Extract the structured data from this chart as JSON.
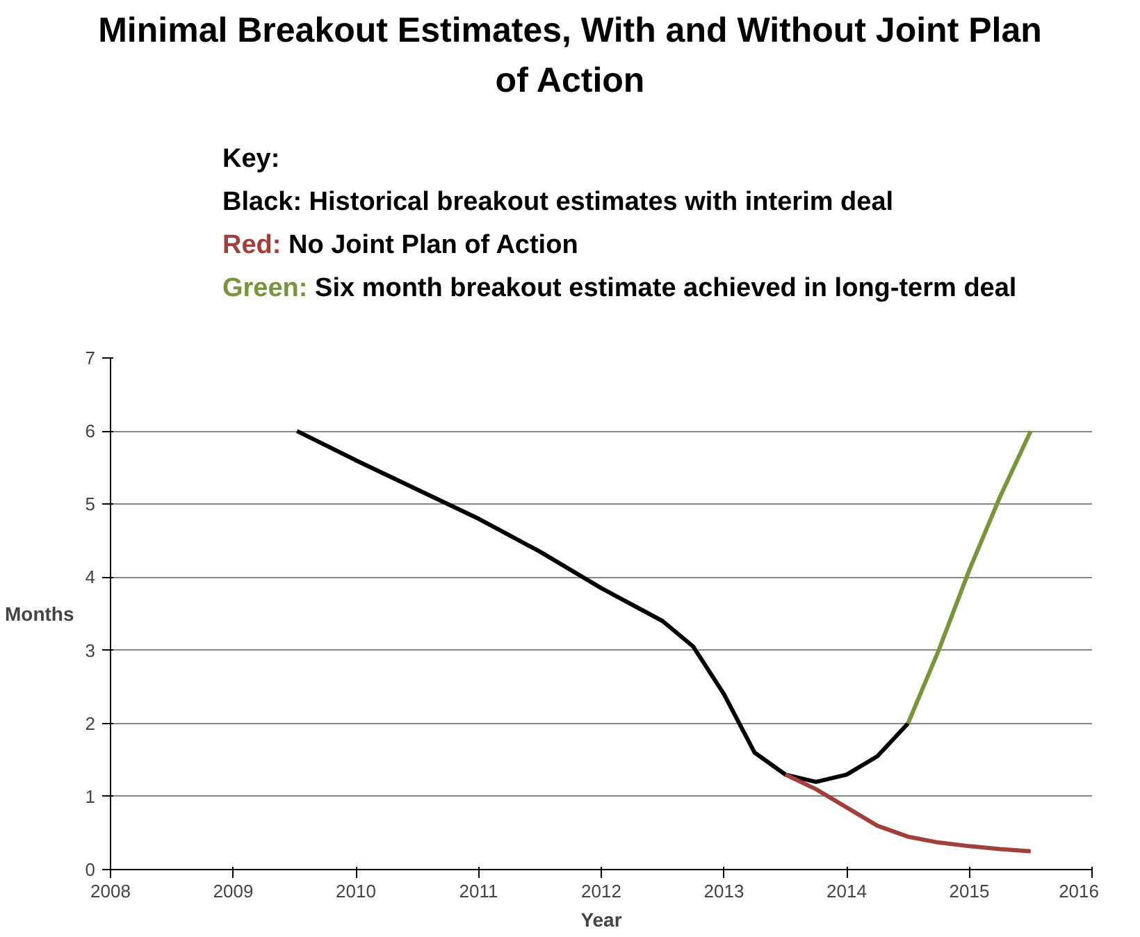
{
  "chart_data": {
    "type": "line",
    "title": "Minimal Breakout Estimates, With and Without Joint Plan of Action",
    "xlabel": "Year",
    "ylabel": "Months",
    "annotations": [
      "Key:",
      "Black: Historical breakout estimates with interim deal",
      "Red: No Joint Plan of Action",
      "Green: Six month breakout estimate achieved in long-term deal"
    ],
    "series": [
      {
        "color": "#000000",
        "x": [
          2009.52,
          2010,
          2010.5,
          2011,
          2011.5,
          2012,
          2012.5,
          2012.75,
          2013,
          2013.25,
          2013.5,
          2013.75,
          2014,
          2014.25,
          2014.5
        ],
        "values": [
          6.0,
          5.6,
          5.2,
          4.8,
          4.35,
          3.85,
          3.4,
          3.05,
          2.4,
          1.6,
          1.3,
          1.2,
          1.3,
          1.55,
          2.0
        ]
      },
      {
        "color": "#a0403c",
        "x": [
          2013.5,
          2013.75,
          2014,
          2014.25,
          2014.5,
          2014.75,
          2015,
          2015.25,
          2015.5
        ],
        "values": [
          1.3,
          1.1,
          0.85,
          0.6,
          0.45,
          0.37,
          0.32,
          0.28,
          0.25
        ]
      },
      {
        "color": "#76953c",
        "x": [
          2014.5,
          2014.75,
          2015,
          2015.25,
          2015.5
        ],
        "values": [
          2.0,
          3.0,
          4.1,
          5.1,
          6.0
        ]
      }
    ],
    "xlim": [
      2008,
      2016
    ],
    "xticks": [
      2008,
      2009,
      2010,
      2011,
      2012,
      2013,
      2014,
      2015,
      2016
    ],
    "ylim": [
      0,
      7
    ],
    "yticks": [
      0,
      1,
      2,
      3,
      4,
      5,
      6,
      7
    ],
    "grid": "y",
    "line_style": "solid"
  }
}
